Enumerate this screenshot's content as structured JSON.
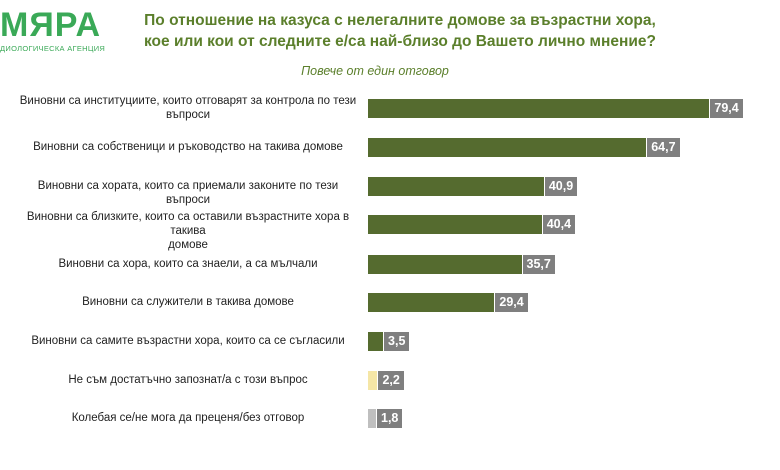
{
  "logo": {
    "word": "МЯРА",
    "sub": "ДИОЛОГИЧЕСКА АГЕНЦИЯ"
  },
  "header": {
    "title_line1": "По отношение на казуса с нелегалните домове за възрастни хора,",
    "title_line2": "кое или кои от следните е/са най-близо до Вашето лично мнение?",
    "subtitle": "Повече от един отговор"
  },
  "colors": {
    "bar_default": "#556b2f",
    "bar_dontknow": "#f5e6a6",
    "bar_undecided": "#bfbfbf",
    "value_box": "#7f7f7f"
  },
  "chart_data": {
    "type": "bar",
    "orientation": "horizontal",
    "title": "По отношение на казуса с нелегалните домове за възрастни хора, кое или кои от следните е/са най-близо до Вашето лично мнение?",
    "subtitle": "Повече от един отговор",
    "categories": [
      [
        "Виновни са институциите, които отговарят за контрола по тези",
        "въпроси"
      ],
      [
        "Виновни са собственици и ръководство на такива домове"
      ],
      [
        "Виновни са хората, които са приемали законите по тези въпроси"
      ],
      [
        "Виновни са близките, които са оставили възрастните хора в такива",
        "домове"
      ],
      [
        "Виновни са хора, които са знаели, а са мълчали"
      ],
      [
        "Виновни са служители в такива домове"
      ],
      [
        "Виновни са самите възрастни хора, които са се съгласили"
      ],
      [
        "Не съм достатъчно запознат/а с този въпрос"
      ],
      [
        "Колебая се/не мога да преценя/без отговор"
      ]
    ],
    "values": [
      79.4,
      64.7,
      40.9,
      40.4,
      35.7,
      29.4,
      3.5,
      2.2,
      1.8
    ],
    "value_labels": [
      "79,4",
      "64,7",
      "40,9",
      "40,4",
      "35,7",
      "29,4",
      "3,5",
      "2,2",
      "1,8"
    ],
    "bar_colors": [
      "#556b2f",
      "#556b2f",
      "#556b2f",
      "#556b2f",
      "#556b2f",
      "#556b2f",
      "#556b2f",
      "#f5e6a6",
      "#bfbfbf"
    ],
    "xlim": [
      0,
      100
    ],
    "grid": false,
    "legend": "none"
  }
}
